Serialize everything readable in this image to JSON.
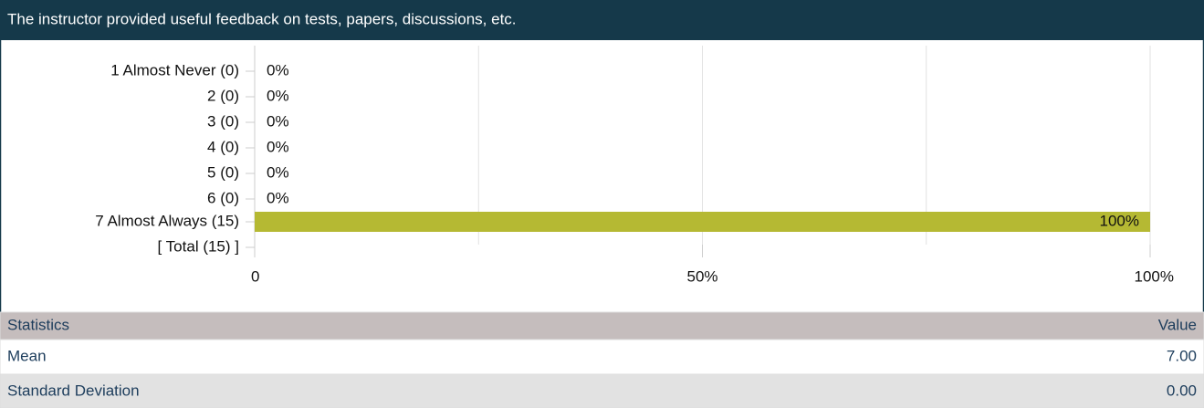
{
  "header": {
    "title": "The instructor provided useful feedback on tests, papers, discussions, etc."
  },
  "chart_data": {
    "type": "barh",
    "categories": [
      "1 Almost Never (0)",
      "2 (0)",
      "3 (0)",
      "4 (0)",
      "5 (0)",
      "6 (0)",
      "7 Almost Always (15)",
      "[ Total (15) ]"
    ],
    "values": [
      0,
      0,
      0,
      0,
      0,
      0,
      100,
      null
    ],
    "value_labels": [
      "0%",
      "0%",
      "0%",
      "0%",
      "0%",
      "0%",
      "100%",
      null
    ],
    "color": "#b5b933",
    "xlim": [
      0,
      100
    ],
    "xticks": [
      0,
      {
        "value": 50,
        "label": "50%"
      },
      {
        "value": 100,
        "label": "100%"
      }
    ],
    "xgrid": [
      0,
      25,
      50,
      75,
      100
    ]
  },
  "table": {
    "header": [
      "Statistics",
      "Value"
    ],
    "rows": [
      [
        "Mean",
        "7.00"
      ],
      [
        "Standard Deviation",
        "0.00"
      ]
    ]
  }
}
